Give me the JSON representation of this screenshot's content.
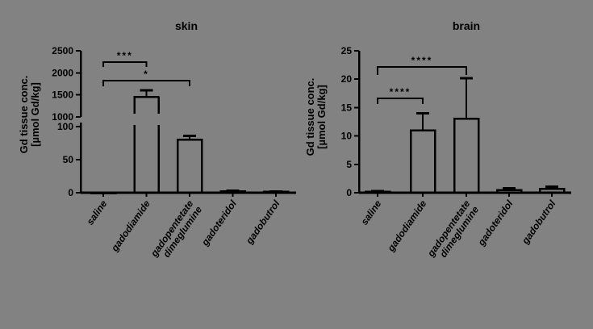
{
  "page": {
    "background_color": "#828282",
    "ink_color": "#000000"
  },
  "chart_data": [
    {
      "id": "skin",
      "type": "bar",
      "title": "skin",
      "ylabel_line1": "Gd tissue conc.",
      "ylabel_line2": "[µmol Gd/kg]",
      "categories": [
        [
          "saline"
        ],
        [
          "gadodiamide"
        ],
        [
          "gadopentetate",
          "dimeglumine"
        ],
        [
          "gadoteridol"
        ],
        [
          "gadobutrol"
        ]
      ],
      "values": [
        0.3,
        1450,
        80,
        2,
        1.5
      ],
      "errors": [
        0,
        150,
        6,
        1,
        0.5
      ],
      "bar_fill": "none",
      "grid": false,
      "axis_broken": true,
      "segments": [
        {
          "range": [
            0,
            100
          ],
          "ticks": [
            0,
            50,
            100
          ]
        },
        {
          "range": [
            1000,
            2500
          ],
          "ticks": [
            1000,
            1500,
            2000,
            2500
          ]
        }
      ],
      "significance": [
        {
          "from": 0,
          "to": 1,
          "label": "***"
        },
        {
          "from": 0,
          "to": 2,
          "label": "*"
        }
      ]
    },
    {
      "id": "brain",
      "type": "bar",
      "title": "brain",
      "ylabel_line1": "Gd tissue conc.",
      "ylabel_line2": "[µmol Gd/kg]",
      "categories": [
        [
          "saline"
        ],
        [
          "gadodiamide"
        ],
        [
          "gadopentetate",
          "dimeglumine"
        ],
        [
          "gadoteridol"
        ],
        [
          "gadobutrol"
        ]
      ],
      "values": [
        0.2,
        11,
        13,
        0.45,
        0.7
      ],
      "errors": [
        0.1,
        3,
        7.2,
        0.3,
        0.4
      ],
      "bar_fill": "none",
      "grid": false,
      "axis_broken": false,
      "segments": [
        {
          "range": [
            0,
            25
          ],
          "ticks": [
            0,
            5,
            10,
            15,
            20,
            25
          ]
        }
      ],
      "significance": [
        {
          "from": 0,
          "to": 2,
          "label": "****"
        },
        {
          "from": 0,
          "to": 1,
          "label": "****"
        }
      ]
    }
  ]
}
